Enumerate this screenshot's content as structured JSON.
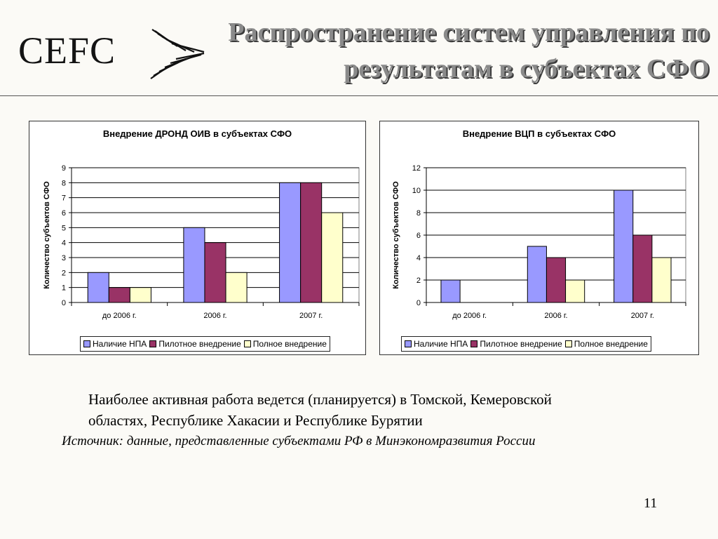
{
  "header": {
    "logo_text": "CEFC",
    "title_line1": "Распространение систем управления по",
    "title_line2": "результатам в субъектах СФО"
  },
  "colors": {
    "series": [
      "#9999ff",
      "#993366",
      "#ffffcc"
    ],
    "title_text": "#8a8a8a"
  },
  "chart_data": [
    {
      "type": "bar",
      "title": "Внедрение ДРОНД ОИВ в субъектах СФО",
      "ylabel": "Количество субъектов СФО",
      "xlabel": "",
      "categories": [
        "до 2006 г.",
        "2006 г.",
        "2007 г."
      ],
      "ylim": [
        0,
        9
      ],
      "yticks": [
        0,
        1,
        2,
        3,
        4,
        5,
        6,
        7,
        8,
        9
      ],
      "grid": true,
      "legend": "bottom",
      "series": [
        {
          "name": "Наличие НПА",
          "values": [
            2,
            5,
            8
          ]
        },
        {
          "name": "Пилотное внедрение",
          "values": [
            1,
            4,
            8
          ]
        },
        {
          "name": "Полное внедрение",
          "values": [
            1,
            2,
            6
          ]
        }
      ]
    },
    {
      "type": "bar",
      "title": "Внедрение ВЦП в субъектах СФО",
      "ylabel": "Количество субъектов СФО",
      "xlabel": "",
      "categories": [
        "до 2006 г.",
        "2006 г.",
        "2007 г."
      ],
      "ylim": [
        0,
        12
      ],
      "yticks": [
        0,
        2,
        4,
        6,
        8,
        10,
        12
      ],
      "grid": true,
      "legend": "bottom",
      "series": [
        {
          "name": "Наличие НПА",
          "values": [
            2,
            5,
            10
          ]
        },
        {
          "name": "Пилотное внедрение",
          "values": [
            0,
            4,
            6
          ]
        },
        {
          "name": "Полное внедрение",
          "values": [
            0,
            2,
            4
          ]
        }
      ]
    }
  ],
  "caption": {
    "line1": "Наиболее активная работа ведется (планируется) в Томской, Кемеровской",
    "line2": "областях, Республике Хакасии и Республике Бурятии"
  },
  "source": "Источник: данные, представленные субъектами РФ в Минэкономразвития России",
  "page_number": "11"
}
